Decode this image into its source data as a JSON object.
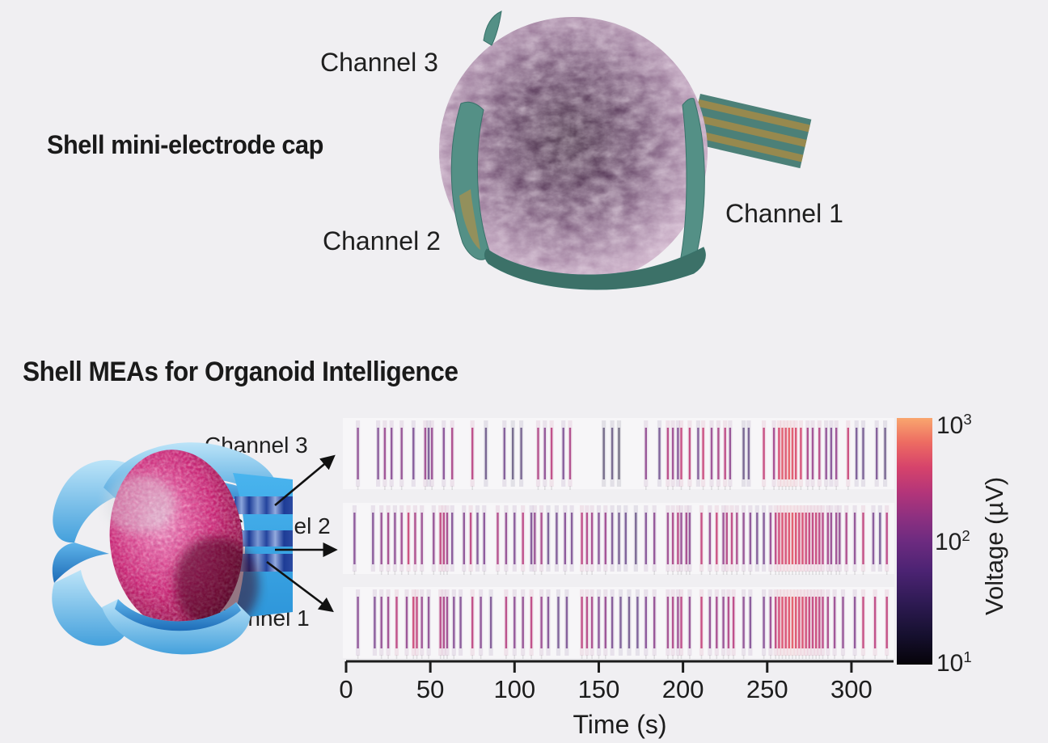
{
  "page": {
    "background_color": "#f0eff2",
    "text_color": "#1c1c1c"
  },
  "top_section": {
    "title": "Shell mini-electrode cap",
    "labels": {
      "channel3": "Channel 3",
      "channel2": "Channel 2",
      "channel1": "Channel 1"
    }
  },
  "bottom_section": {
    "title": "Shell MEAs for Organoid Intelligence",
    "labels": {
      "channel3": "Channel 3",
      "channel2": "Channel 2",
      "channel1": "Channel 1"
    }
  },
  "colors": {
    "background": "#f0eff2",
    "shell_teal": "#4c8078",
    "electrode_gold": "#97894e",
    "organoid_mauve": "#8f6f8c",
    "organoid_pink": "#cc2474",
    "shell_blue": "#49b4ee",
    "cable_stripe_blue": "#1d3c96",
    "annotation_black": "#111111"
  },
  "chart_data": {
    "type": "heatmap",
    "subtype": "spike-raster",
    "title": "",
    "xlabel": "Time (s)",
    "x_ticks": [
      0,
      50,
      100,
      150,
      200,
      250,
      300
    ],
    "x_range": [
      0,
      325
    ],
    "rows": [
      "Channel 3",
      "Channel 2",
      "Channel 1"
    ],
    "grid": false,
    "colorbar": {
      "label": "Voltage (µV)",
      "scale": "log10",
      "range": [
        10,
        1000
      ],
      "ticks": [
        {
          "base": "10",
          "exp": "3"
        },
        {
          "base": "10",
          "exp": "2"
        },
        {
          "base": "10",
          "exp": "1"
        }
      ],
      "gradient_stops": [
        [
          0.0,
          "#060309"
        ],
        [
          0.12,
          "#16102f"
        ],
        [
          0.25,
          "#2e1a53"
        ],
        [
          0.38,
          "#4c2373"
        ],
        [
          0.5,
          "#6d2b80"
        ],
        [
          0.6,
          "#8e3080"
        ],
        [
          0.7,
          "#b43579"
        ],
        [
          0.8,
          "#d6436b"
        ],
        [
          0.9,
          "#ed6b62"
        ],
        [
          1.0,
          "#f9a66e"
        ]
      ]
    },
    "series": [
      {
        "name": "Channel 3",
        "spikes": [
          [
            7,
            120
          ],
          [
            19,
            90
          ],
          [
            23,
            150
          ],
          [
            27,
            110
          ],
          [
            33,
            130
          ],
          [
            40,
            80
          ],
          [
            47,
            160
          ],
          [
            49,
            60
          ],
          [
            51,
            140
          ],
          [
            58,
            100
          ],
          [
            63,
            200
          ],
          [
            75,
            250
          ],
          [
            83,
            40
          ],
          [
            94,
            70
          ],
          [
            99,
            30
          ],
          [
            104,
            40
          ],
          [
            114,
            220
          ],
          [
            118,
            120
          ],
          [
            122,
            260
          ],
          [
            129,
            80
          ],
          [
            133,
            210
          ],
          [
            153,
            25
          ],
          [
            158,
            35
          ],
          [
            162,
            20
          ],
          [
            178,
            130
          ],
          [
            186,
            60
          ],
          [
            191,
            240
          ],
          [
            194,
            160
          ],
          [
            197,
            90
          ],
          [
            199,
            300
          ],
          [
            204,
            280
          ],
          [
            209,
            70
          ],
          [
            212,
            320
          ],
          [
            217,
            150
          ],
          [
            221,
            200
          ],
          [
            225,
            260
          ],
          [
            228,
            130
          ],
          [
            236,
            40
          ],
          [
            239,
            50
          ],
          [
            248,
            300
          ],
          [
            254,
            180
          ],
          [
            257,
            400
          ],
          [
            259,
            500
          ],
          [
            261,
            450
          ],
          [
            263,
            550
          ],
          [
            265,
            480
          ],
          [
            267,
            420
          ],
          [
            270,
            380
          ],
          [
            274,
            200
          ],
          [
            277,
            160
          ],
          [
            281,
            240
          ],
          [
            285,
            120
          ],
          [
            288,
            90
          ],
          [
            291,
            150
          ],
          [
            298,
            320
          ],
          [
            303,
            60
          ],
          [
            307,
            50
          ],
          [
            315,
            70
          ],
          [
            320,
            40
          ]
        ]
      },
      {
        "name": "Channel 2",
        "spikes": [
          [
            5,
            100
          ],
          [
            16,
            90
          ],
          [
            21,
            140
          ],
          [
            25,
            180
          ],
          [
            29,
            120
          ],
          [
            33,
            160
          ],
          [
            37,
            320
          ],
          [
            41,
            200
          ],
          [
            45,
            150
          ],
          [
            52,
            130
          ],
          [
            56,
            280
          ],
          [
            58,
            240
          ],
          [
            60,
            180
          ],
          [
            63,
            90
          ],
          [
            70,
            110
          ],
          [
            74,
            260
          ],
          [
            78,
            80
          ],
          [
            82,
            100
          ],
          [
            90,
            220
          ],
          [
            95,
            130
          ],
          [
            100,
            90
          ],
          [
            105,
            250
          ],
          [
            110,
            80
          ],
          [
            112,
            140
          ],
          [
            116,
            190
          ],
          [
            120,
            60
          ],
          [
            125,
            70
          ],
          [
            130,
            100
          ],
          [
            134,
            80
          ],
          [
            140,
            260
          ],
          [
            143,
            220
          ],
          [
            146,
            180
          ],
          [
            150,
            90
          ],
          [
            154,
            160
          ],
          [
            158,
            70
          ],
          [
            162,
            50
          ],
          [
            166,
            60
          ],
          [
            172,
            40
          ],
          [
            178,
            90
          ],
          [
            183,
            120
          ],
          [
            191,
            160
          ],
          [
            194,
            200
          ],
          [
            197,
            240
          ],
          [
            199,
            140
          ],
          [
            202,
            180
          ],
          [
            204,
            120
          ],
          [
            211,
            290
          ],
          [
            216,
            140
          ],
          [
            220,
            310
          ],
          [
            224,
            150
          ],
          [
            226,
            230
          ],
          [
            229,
            260
          ],
          [
            232,
            190
          ],
          [
            236,
            130
          ],
          [
            240,
            110
          ],
          [
            244,
            70
          ],
          [
            248,
            80
          ],
          [
            252,
            140
          ],
          [
            255,
            260
          ],
          [
            257,
            350
          ],
          [
            259,
            420
          ],
          [
            261,
            380
          ],
          [
            263,
            450
          ],
          [
            265,
            500
          ],
          [
            267,
            420
          ],
          [
            269,
            360
          ],
          [
            271,
            400
          ],
          [
            273,
            330
          ],
          [
            275,
            300
          ],
          [
            277,
            280
          ],
          [
            279,
            320
          ],
          [
            281,
            260
          ],
          [
            283,
            240
          ],
          [
            286,
            180
          ],
          [
            288,
            140
          ],
          [
            291,
            160
          ],
          [
            293,
            130
          ],
          [
            297,
            200
          ],
          [
            302,
            120
          ],
          [
            307,
            280
          ],
          [
            313,
            90
          ],
          [
            317,
            60
          ],
          [
            321,
            250
          ]
        ]
      },
      {
        "name": "Channel 1",
        "spikes": [
          [
            7,
            110
          ],
          [
            17,
            90
          ],
          [
            21,
            130
          ],
          [
            25,
            160
          ],
          [
            30,
            260
          ],
          [
            36,
            140
          ],
          [
            40,
            330
          ],
          [
            42,
            280
          ],
          [
            45,
            150
          ],
          [
            49,
            120
          ],
          [
            56,
            240
          ],
          [
            58,
            200
          ],
          [
            60,
            160
          ],
          [
            64,
            100
          ],
          [
            68,
            90
          ],
          [
            75,
            270
          ],
          [
            80,
            110
          ],
          [
            86,
            70
          ],
          [
            95,
            240
          ],
          [
            100,
            120
          ],
          [
            105,
            130
          ],
          [
            110,
            260
          ],
          [
            116,
            150
          ],
          [
            120,
            90
          ],
          [
            126,
            60
          ],
          [
            131,
            70
          ],
          [
            140,
            270
          ],
          [
            143,
            230
          ],
          [
            146,
            190
          ],
          [
            150,
            100
          ],
          [
            154,
            140
          ],
          [
            158,
            80
          ],
          [
            163,
            60
          ],
          [
            168,
            50
          ],
          [
            173,
            60
          ],
          [
            178,
            100
          ],
          [
            183,
            130
          ],
          [
            191,
            170
          ],
          [
            194,
            210
          ],
          [
            197,
            150
          ],
          [
            199,
            250
          ],
          [
            204,
            130
          ],
          [
            211,
            300
          ],
          [
            216,
            130
          ],
          [
            220,
            180
          ],
          [
            224,
            140
          ],
          [
            227,
            220
          ],
          [
            230,
            250
          ],
          [
            236,
            120
          ],
          [
            240,
            90
          ],
          [
            248,
            100
          ],
          [
            252,
            150
          ],
          [
            255,
            280
          ],
          [
            257,
            360
          ],
          [
            259,
            430
          ],
          [
            261,
            400
          ],
          [
            263,
            470
          ],
          [
            265,
            520
          ],
          [
            267,
            440
          ],
          [
            269,
            380
          ],
          [
            271,
            420
          ],
          [
            273,
            350
          ],
          [
            275,
            310
          ],
          [
            277,
            290
          ],
          [
            279,
            330
          ],
          [
            281,
            270
          ],
          [
            283,
            250
          ],
          [
            286,
            190
          ],
          [
            290,
            150
          ],
          [
            295,
            130
          ],
          [
            302,
            110
          ],
          [
            307,
            290
          ],
          [
            314,
            260
          ],
          [
            321,
            280
          ]
        ]
      }
    ]
  }
}
